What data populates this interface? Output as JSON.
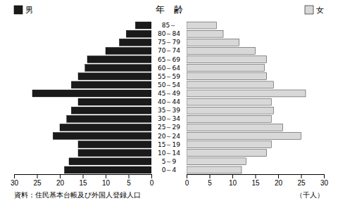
{
  "chart_data": {
    "type": "pyramid",
    "orientation": "horizontal",
    "title": "年　齢",
    "categories": [
      "0～4",
      "5～9",
      "10～14",
      "15～19",
      "20～24",
      "25～29",
      "30～34",
      "35～39",
      "40～44",
      "45～49",
      "50～54",
      "55～59",
      "60～64",
      "65～69",
      "70～74",
      "75～79",
      "80～84",
      "85～"
    ],
    "series": [
      {
        "name": "男",
        "color": "#1a1a1a",
        "values": [
          19.0,
          18.0,
          16.0,
          16.0,
          21.5,
          20.0,
          18.5,
          17.5,
          16.0,
          26.0,
          17.5,
          16.0,
          14.5,
          14.0,
          10.0,
          7.0,
          5.5,
          3.5
        ]
      },
      {
        "name": "女",
        "color": "#d8d8d8",
        "values": [
          12.0,
          13.0,
          17.5,
          18.5,
          25.0,
          21.0,
          18.5,
          19.0,
          18.5,
          26.0,
          19.0,
          17.5,
          17.0,
          17.5,
          15.0,
          11.5,
          8.0,
          6.5
        ]
      }
    ],
    "xlim": [
      0,
      30
    ],
    "xticks": [
      0,
      5,
      10,
      15,
      20,
      25,
      30
    ],
    "xlabel": "（千人）",
    "annotations": [
      "資料：住民基本台帳及び外国人登録人口"
    ],
    "legend": "top"
  }
}
